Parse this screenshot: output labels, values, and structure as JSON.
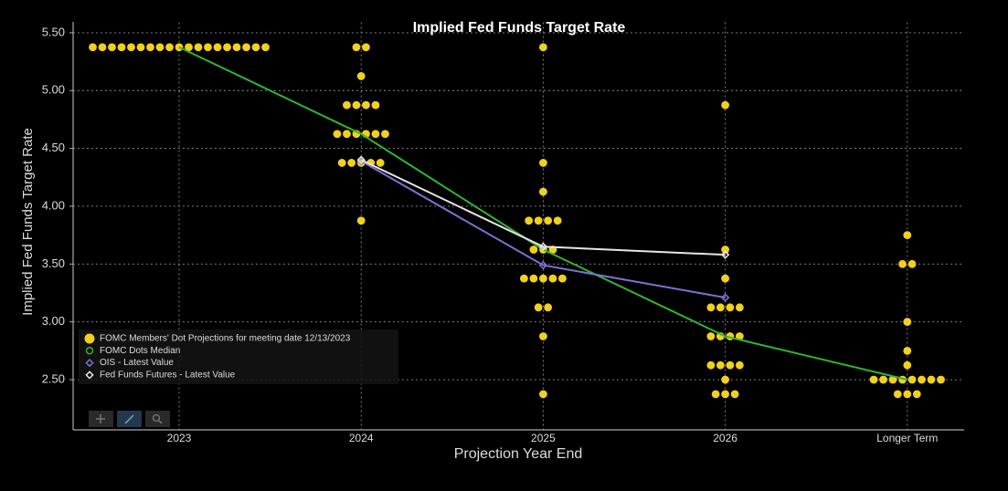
{
  "chart_data": {
    "type": "dot",
    "title": "Implied Fed Funds Target Rate",
    "y_label": "Implied Fed Funds Target Rate",
    "x_label": "Projection Year End",
    "categories": [
      "2023",
      "2024",
      "2025",
      "2026",
      "Longer Term"
    ],
    "ylim": [
      2.07,
      5.59
    ],
    "yticks": [
      {
        "value": 2.5,
        "label": "2.50"
      },
      {
        "value": 3.0,
        "label": "3.00"
      },
      {
        "value": 3.5,
        "label": "3.50"
      },
      {
        "value": 4.0,
        "label": "4.00"
      },
      {
        "value": 4.5,
        "label": "4.50"
      },
      {
        "value": 5.0,
        "label": "5.00"
      },
      {
        "value": 5.5,
        "label": "5.50"
      }
    ],
    "grid": true,
    "legend": "lower left",
    "series": [
      {
        "name": "FOMC Members' Dot Projections for meeting date 12/13/2023",
        "kind": "dots",
        "marker": "circle",
        "color": "#f2d01e",
        "values": [
          [
            5.375,
            5.375,
            5.375,
            5.375,
            5.375,
            5.375,
            5.375,
            5.375,
            5.375,
            5.375,
            5.375,
            5.375,
            5.375,
            5.375,
            5.375,
            5.375,
            5.375,
            5.375,
            5.375
          ],
          [
            5.375,
            5.375,
            5.125,
            4.875,
            4.875,
            4.875,
            4.875,
            4.625,
            4.625,
            4.625,
            4.625,
            4.625,
            4.625,
            4.375,
            4.375,
            4.375,
            4.375,
            4.375,
            3.875
          ],
          [
            5.375,
            4.375,
            4.125,
            3.875,
            3.875,
            3.875,
            3.875,
            3.625,
            3.625,
            3.625,
            3.375,
            3.375,
            3.375,
            3.375,
            3.375,
            3.125,
            3.125,
            2.875,
            2.375
          ],
          [
            4.875,
            3.625,
            3.375,
            3.125,
            3.125,
            3.125,
            3.125,
            2.875,
            2.875,
            2.875,
            2.875,
            2.625,
            2.625,
            2.625,
            2.625,
            2.5,
            2.375,
            2.375,
            2.375
          ],
          [
            3.75,
            3.5,
            3.5,
            3.0,
            2.75,
            2.625,
            2.5,
            2.5,
            2.5,
            2.5,
            2.5,
            2.5,
            2.5,
            2.5,
            2.375,
            2.375,
            2.375
          ]
        ]
      },
      {
        "name": "FOMC Dots Median",
        "kind": "line",
        "marker": "hollow-circle",
        "color": "#2fb52f",
        "values": [
          5.375,
          4.625,
          3.625,
          2.875,
          2.5
        ]
      },
      {
        "name": "OIS - Latest Value",
        "kind": "line",
        "marker": "diamond",
        "color": "#7d70d4",
        "values": [
          null,
          4.39,
          3.49,
          3.21,
          null
        ]
      },
      {
        "name": "Fed Funds Futures - Latest Value",
        "kind": "line",
        "marker": "diamond",
        "color": "#e6e6e6",
        "values": [
          null,
          4.4,
          3.65,
          3.58,
          null
        ]
      }
    ]
  }
}
